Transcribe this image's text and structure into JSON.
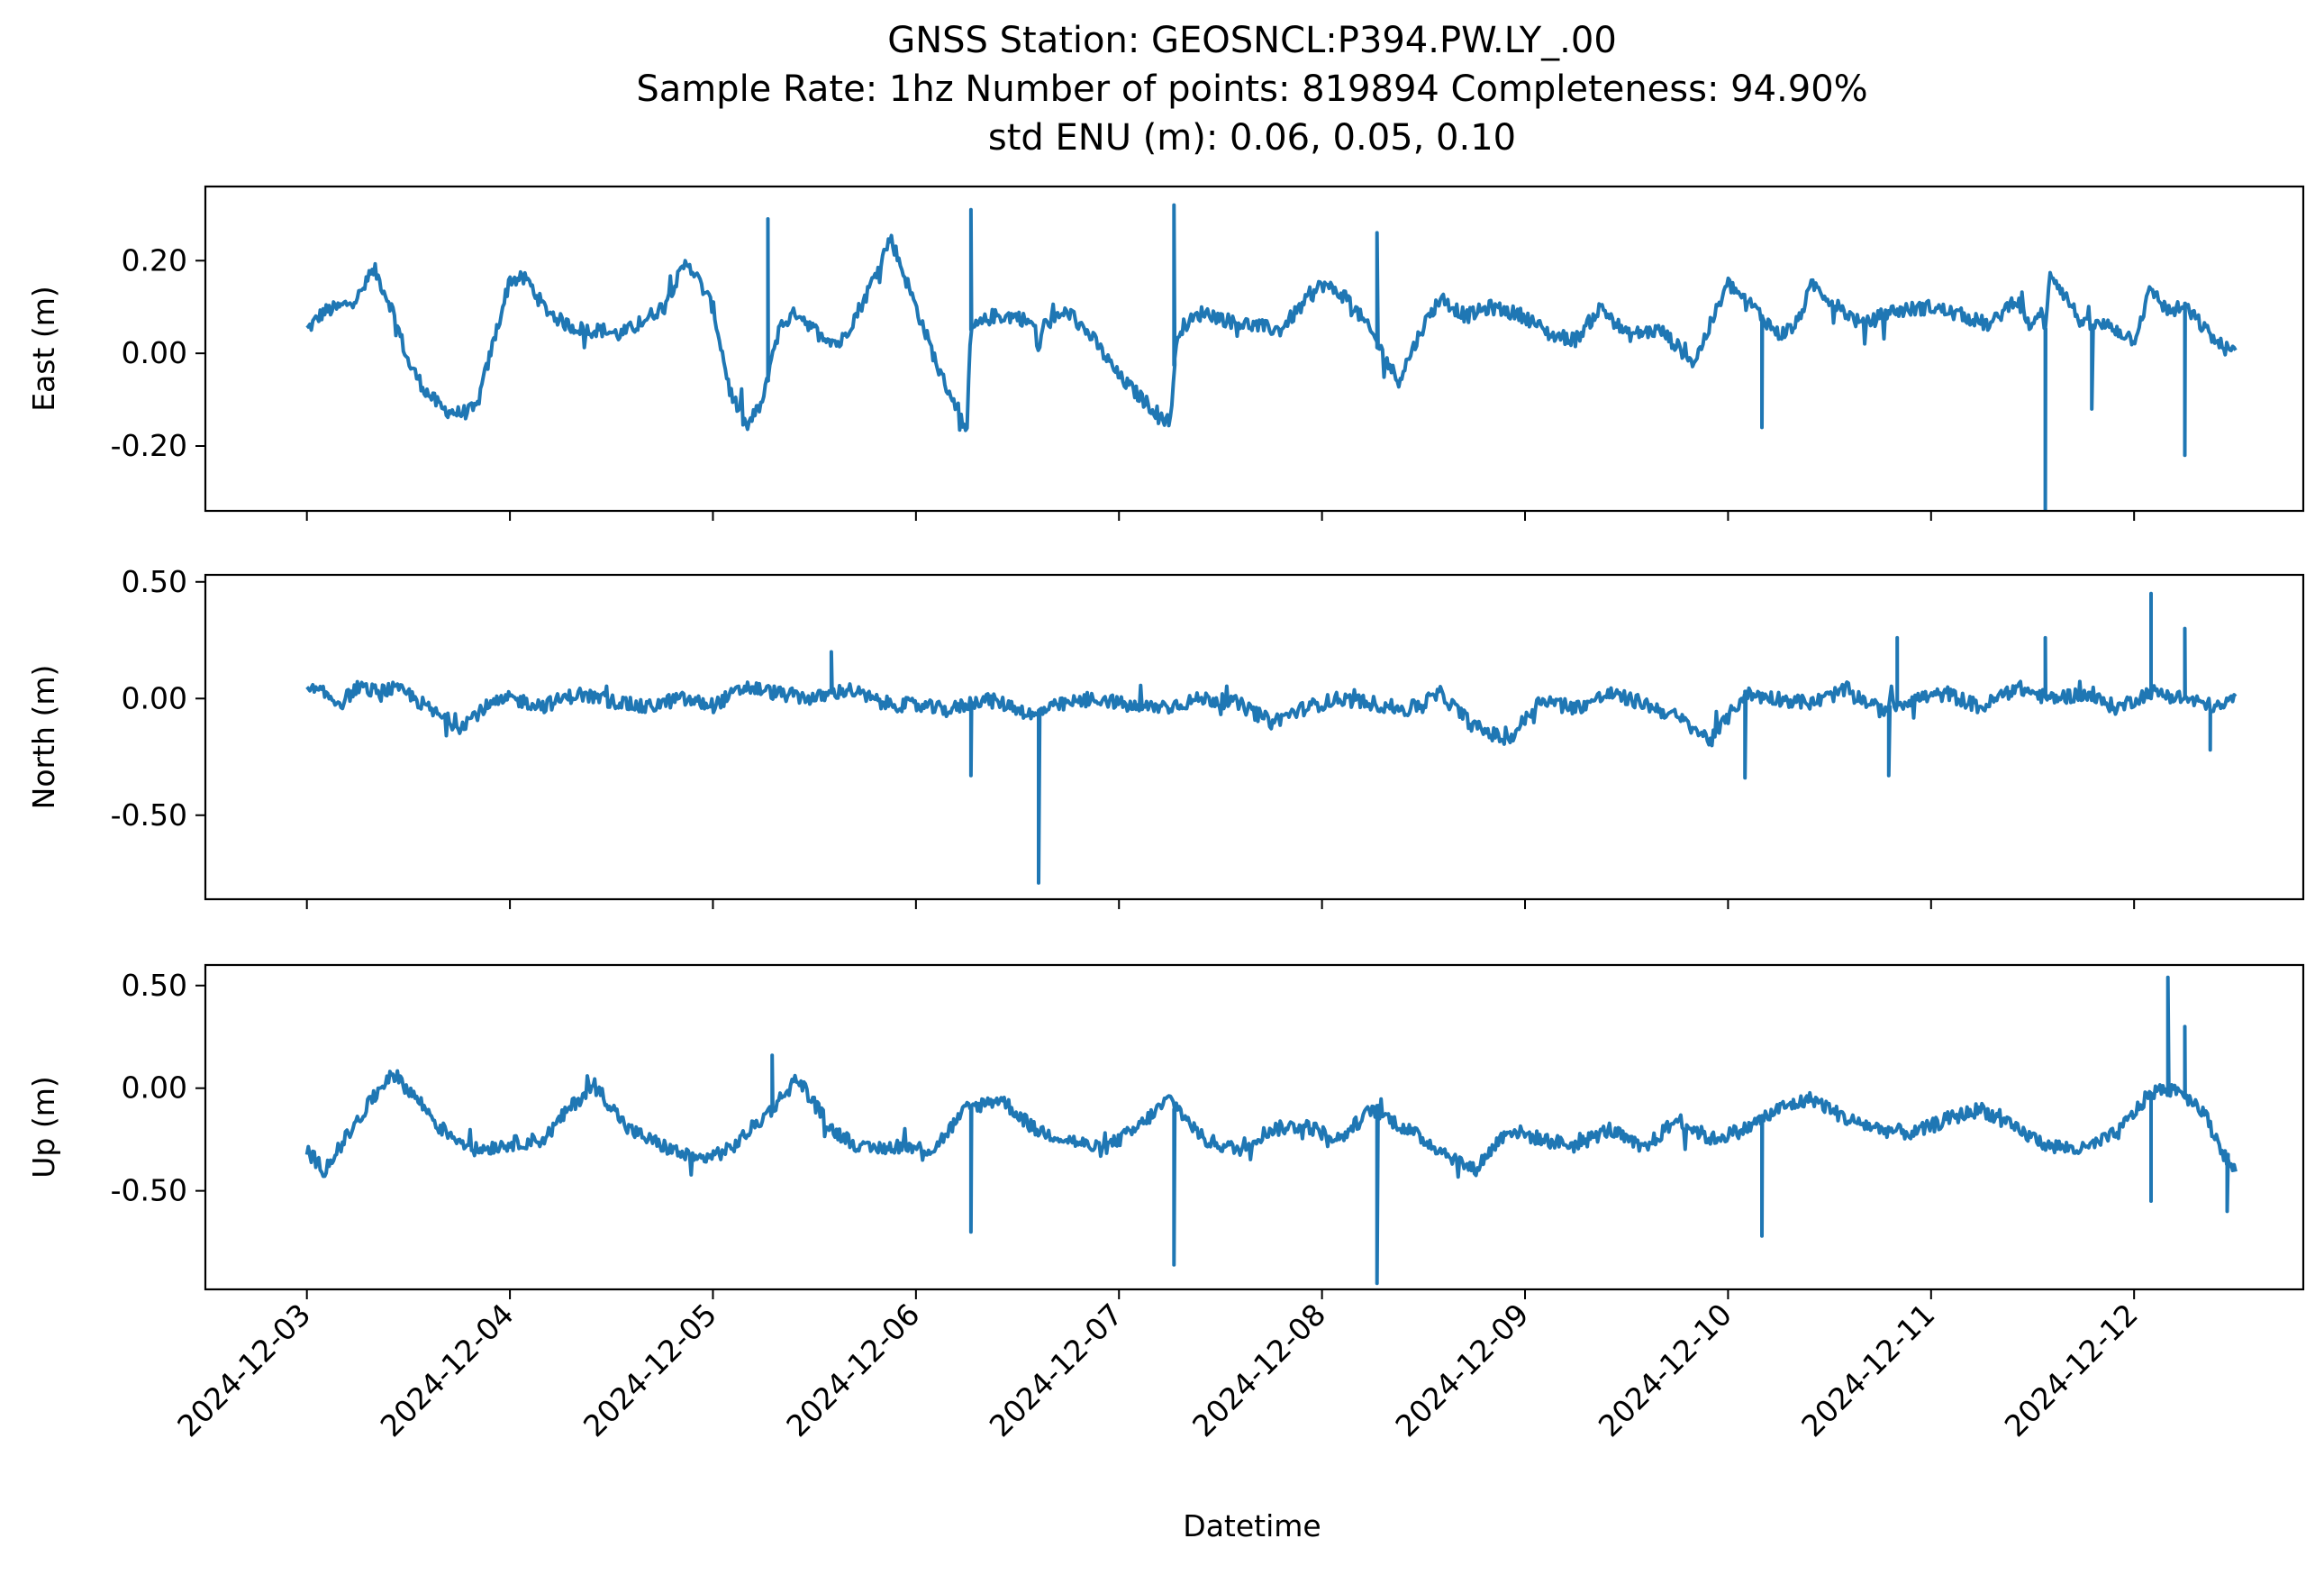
{
  "title": {
    "line1": "GNSS Station: GEOSNCL:P394.PW.LY_.00",
    "line2": "Sample Rate: 1hz   Number of points: 819894    Completeness:  94.90%",
    "line3": "std ENU (m):  0.06, 0.05, 0.10"
  },
  "xlabel": "Datetime",
  "x_tick_labels": [
    "2024-12-03",
    "2024-12-04",
    "2024-12-05",
    "2024-12-06",
    "2024-12-07",
    "2024-12-08",
    "2024-12-09",
    "2024-12-10",
    "2024-12-11",
    "2024-12-12"
  ],
  "colors": {
    "series": "#1f77b4",
    "axes": "#000000",
    "background": "#ffffff"
  },
  "chart_data": [
    {
      "type": "line",
      "name": "east",
      "ylabel": "East (m)",
      "x_range": [
        "2024-12-02T12:00",
        "2024-12-12T20:00"
      ],
      "ylim": [
        -0.34,
        0.36
      ],
      "yticks": [
        0.2,
        0.0,
        -0.2
      ],
      "ytick_labels": [
        "0.20",
        "0.00",
        "-0.20"
      ],
      "grid": false,
      "series": [
        {
          "x": [
            "2024-12-03T00:00",
            "2024-12-03T02:00",
            "2024-12-03T04:00",
            "2024-12-03T06:00",
            "2024-12-03T08:00",
            "2024-12-03T10:00",
            "2024-12-03T12:00",
            "2024-12-03T14:00",
            "2024-12-03T16:00",
            "2024-12-03T18:00",
            "2024-12-03T20:00",
            "2024-12-03T22:00",
            "2024-12-04T00:00",
            "2024-12-04T02:00",
            "2024-12-04T04:00",
            "2024-12-04T06:00",
            "2024-12-04T07:00",
            "2024-12-04T09:00",
            "2024-12-04T11:00",
            "2024-12-04T13:00",
            "2024-12-04T15:00",
            "2024-12-04T18:00",
            "2024-12-04T21:00",
            "2024-12-05T00:00",
            "2024-12-05T02:00",
            "2024-12-05T04:00",
            "2024-12-05T06:00",
            "2024-12-05T07:00",
            "2024-12-05T08:00",
            "2024-12-05T10:00",
            "2024-12-05T12:00",
            "2024-12-05T13:00",
            "2024-12-05T14:00",
            "2024-12-05T15:00",
            "2024-12-05T18:00",
            "2024-12-05T21:00",
            "2024-12-06T00:00",
            "2024-12-06T03:00",
            "2024-12-06T05:00",
            "2024-12-06T06:00",
            "2024-12-06T06:15",
            "2024-12-06T06:30",
            "2024-12-06T09:00",
            "2024-12-06T12:00",
            "2024-12-06T14:00",
            "2024-12-06T14:30",
            "2024-12-06T15:00",
            "2024-12-06T18:00",
            "2024-12-06T21:00",
            "2024-12-07T00:00",
            "2024-12-07T04:00",
            "2024-12-07T06:00",
            "2024-12-07T06:30",
            "2024-12-07T07:00",
            "2024-12-07T10:00",
            "2024-12-07T13:00",
            "2024-12-07T16:00",
            "2024-12-07T19:00",
            "2024-12-08T00:00",
            "2024-12-08T03:00",
            "2024-12-08T06:00",
            "2024-12-08T09:00",
            "2024-12-08T12:00",
            "2024-12-08T14:00",
            "2024-12-08T17:00",
            "2024-12-08T20:00",
            "2024-12-09T00:00",
            "2024-12-09T03:00",
            "2024-12-09T06:00",
            "2024-12-09T09:00",
            "2024-12-09T12:00",
            "2024-12-09T16:00",
            "2024-12-09T20:00",
            "2024-12-10T00:00",
            "2024-12-10T03:00",
            "2024-12-10T06:00",
            "2024-12-10T08:00",
            "2024-12-10T10:00",
            "2024-12-10T13:00",
            "2024-12-10T16:00",
            "2024-12-10T19:00",
            "2024-12-11T00:00",
            "2024-12-11T04:00",
            "2024-12-11T07:00",
            "2024-12-11T10:00",
            "2024-12-11T12:00",
            "2024-12-11T13:00",
            "2024-12-11T13:30",
            "2024-12-11T14:00",
            "2024-12-11T15:00",
            "2024-12-11T18:00",
            "2024-12-11T21:00",
            "2024-12-12T00:00",
            "2024-12-12T02:00",
            "2024-12-12T04:00",
            "2024-12-12T06:00",
            "2024-12-12T08:00",
            "2024-12-12T10:00",
            "2024-12-12T12:00"
          ],
          "y": [
            0.05,
            0.09,
            0.1,
            0.12,
            0.18,
            0.1,
            -0.02,
            -0.08,
            -0.12,
            -0.13,
            -0.12,
            0.02,
            0.16,
            0.16,
            0.1,
            0.07,
            0.06,
            0.05,
            0.05,
            0.04,
            0.06,
            0.1,
            0.2,
            0.1,
            -0.08,
            -0.16,
            -0.1,
            0.0,
            0.06,
            0.09,
            0.05,
            0.04,
            0.03,
            0.02,
            0.12,
            0.25,
            0.1,
            -0.05,
            -0.12,
            -0.19,
            -0.05,
            0.05,
            0.08,
            0.08,
            0.06,
            0.0,
            0.06,
            0.09,
            0.03,
            -0.05,
            -0.12,
            -0.15,
            -0.05,
            0.05,
            0.09,
            0.07,
            0.06,
            0.05,
            0.15,
            0.12,
            0.04,
            -0.06,
            0.06,
            0.12,
            0.08,
            0.1,
            0.08,
            0.04,
            0.03,
            0.1,
            0.04,
            0.05,
            -0.02,
            0.15,
            0.1,
            0.04,
            0.06,
            0.15,
            0.1,
            0.06,
            0.09,
            0.1,
            0.08,
            0.06,
            0.12,
            0.05,
            0.1,
            0.03,
            0.18,
            0.15,
            0.06,
            0.06,
            0.03,
            0.14,
            0.09,
            0.1,
            0.06,
            0.02,
            0.0
          ]
        }
      ],
      "spikes": [
        {
          "x": "2024-12-06T06:30",
          "y": 0.31
        },
        {
          "x": "2024-12-07T06:30",
          "y": 0.32
        },
        {
          "x": "2024-12-05T06:30",
          "y": 0.29
        },
        {
          "x": "2024-12-08T06:30",
          "y": 0.26
        },
        {
          "x": "2024-12-11T13:30",
          "y": -0.34
        },
        {
          "x": "2024-12-12T06:00",
          "y": -0.22
        },
        {
          "x": "2024-12-10T04:00",
          "y": -0.16
        },
        {
          "x": "2024-12-11T19:00",
          "y": -0.12
        }
      ]
    },
    {
      "type": "line",
      "name": "north",
      "ylabel": "North (m)",
      "x_range": [
        "2024-12-02T12:00",
        "2024-12-12T20:00"
      ],
      "ylim": [
        -0.86,
        0.53
      ],
      "yticks": [
        0.5,
        0.0,
        -0.5
      ],
      "ytick_labels": [
        "0.50",
        "0.00",
        "-0.50"
      ],
      "grid": false,
      "series": [
        {
          "x": [
            "2024-12-03T00:00",
            "2024-12-03T02:00",
            "2024-12-03T04:00",
            "2024-12-03T06:00",
            "2024-12-03T08:00",
            "2024-12-03T10:00",
            "2024-12-03T12:00",
            "2024-12-03T15:00",
            "2024-12-03T18:00",
            "2024-12-03T21:00",
            "2024-12-04T00:00",
            "2024-12-04T04:00",
            "2024-12-04T08:00",
            "2024-12-04T12:00",
            "2024-12-04T16:00",
            "2024-12-04T20:00",
            "2024-12-05T00:00",
            "2024-12-05T04:00",
            "2024-12-05T08:00",
            "2024-12-05T12:00",
            "2024-12-05T16:00",
            "2024-12-05T20:00",
            "2024-12-06T00:00",
            "2024-12-06T04:00",
            "2024-12-06T08:00",
            "2024-12-06T12:00",
            "2024-12-06T14:00",
            "2024-12-06T15:00",
            "2024-12-06T18:00",
            "2024-12-06T22:00",
            "2024-12-07T02:00",
            "2024-12-07T06:00",
            "2024-12-07T10:00",
            "2024-12-07T14:00",
            "2024-12-07T18:00",
            "2024-12-07T22:00",
            "2024-12-08T02:00",
            "2024-12-08T06:00",
            "2024-12-08T10:00",
            "2024-12-08T14:00",
            "2024-12-08T18:00",
            "2024-12-08T22:00",
            "2024-12-09T02:00",
            "2024-12-09T06:00",
            "2024-12-09T10:00",
            "2024-12-09T14:00",
            "2024-12-09T18:00",
            "2024-12-09T22:00",
            "2024-12-10T02:00",
            "2024-12-10T06:00",
            "2024-12-10T10:00",
            "2024-12-10T14:00",
            "2024-12-10T18:00",
            "2024-12-10T22:00",
            "2024-12-11T02:00",
            "2024-12-11T06:00",
            "2024-12-11T10:00",
            "2024-12-11T14:00",
            "2024-12-11T18:00",
            "2024-12-11T22:00",
            "2024-12-12T02:00",
            "2024-12-12T06:00",
            "2024-12-12T10:00",
            "2024-12-12T12:00"
          ],
          "y": [
            0.04,
            0.02,
            -0.02,
            0.05,
            0.03,
            0.04,
            0.02,
            -0.06,
            -0.12,
            -0.04,
            0.0,
            -0.03,
            0.02,
            -0.01,
            -0.04,
            0.0,
            -0.03,
            0.05,
            0.02,
            0.0,
            0.04,
            -0.02,
            -0.03,
            -0.05,
            0.0,
            -0.04,
            -0.08,
            -0.05,
            -0.02,
            0.0,
            -0.04,
            -0.03,
            0.0,
            -0.02,
            -0.1,
            -0.04,
            0.0,
            -0.02,
            -0.05,
            0.02,
            -0.12,
            -0.18,
            0.0,
            -0.04,
            0.02,
            -0.02,
            -0.08,
            -0.18,
            0.02,
            0.0,
            -0.02,
            0.04,
            -0.05,
            0.0,
            0.02,
            -0.04,
            0.05,
            0.0,
            0.02,
            -0.04,
            0.03,
            0.0,
            -0.04,
            0.0
          ]
        }
      ],
      "spikes": [
        {
          "x": "2024-12-06T14:30",
          "y": -0.79
        },
        {
          "x": "2024-12-06T06:30",
          "y": -0.33
        },
        {
          "x": "2024-12-05T14:00",
          "y": 0.2
        },
        {
          "x": "2024-12-10T20:00",
          "y": 0.26
        },
        {
          "x": "2024-12-10T02:00",
          "y": -0.34
        },
        {
          "x": "2024-12-10T19:00",
          "y": -0.33
        },
        {
          "x": "2024-12-11T13:30",
          "y": 0.26
        },
        {
          "x": "2024-12-12T02:00",
          "y": 0.45
        },
        {
          "x": "2024-12-12T06:00",
          "y": 0.3
        },
        {
          "x": "2024-12-12T09:00",
          "y": -0.22
        }
      ]
    },
    {
      "type": "line",
      "name": "up",
      "ylabel": "Up (m)",
      "x_range": [
        "2024-12-02T12:00",
        "2024-12-12T20:00"
      ],
      "ylim": [
        -0.98,
        0.6
      ],
      "yticks": [
        0.5,
        0.0,
        -0.5
      ],
      "ytick_labels": [
        "0.50",
        "0.00",
        "-0.50"
      ],
      "grid": false,
      "series": [
        {
          "x": [
            "2024-12-03T00:00",
            "2024-12-03T02:00",
            "2024-12-03T04:00",
            "2024-12-03T07:00",
            "2024-12-03T10:00",
            "2024-12-03T13:00",
            "2024-12-03T16:00",
            "2024-12-03T20:00",
            "2024-12-04T00:00",
            "2024-12-04T04:00",
            "2024-12-04T07:00",
            "2024-12-04T10:00",
            "2024-12-04T14:00",
            "2024-12-04T18:00",
            "2024-12-04T22:00",
            "2024-12-05T02:00",
            "2024-12-05T07:00",
            "2024-12-05T10:00",
            "2024-12-05T14:00",
            "2024-12-05T18:00",
            "2024-12-05T22:00",
            "2024-12-06T02:00",
            "2024-12-06T06:00",
            "2024-12-06T10:00",
            "2024-12-06T14:00",
            "2024-12-06T18:00",
            "2024-12-06T22:00",
            "2024-12-07T02:00",
            "2024-12-07T06:00",
            "2024-12-07T10:00",
            "2024-12-07T14:00",
            "2024-12-07T18:00",
            "2024-12-07T22:00",
            "2024-12-08T02:00",
            "2024-12-08T06:00",
            "2024-12-08T10:00",
            "2024-12-08T14:00",
            "2024-12-08T18:00",
            "2024-12-08T22:00",
            "2024-12-09T02:00",
            "2024-12-09T06:00",
            "2024-12-09T10:00",
            "2024-12-09T14:00",
            "2024-12-09T18:00",
            "2024-12-09T22:00",
            "2024-12-10T02:00",
            "2024-12-10T06:00",
            "2024-12-10T10:00",
            "2024-12-10T14:00",
            "2024-12-10T18:00",
            "2024-12-10T22:00",
            "2024-12-11T02:00",
            "2024-12-11T06:00",
            "2024-12-11T10:00",
            "2024-12-11T14:00",
            "2024-12-11T18:00",
            "2024-12-11T22:00",
            "2024-12-12T02:00",
            "2024-12-12T05:00",
            "2024-12-12T08:00",
            "2024-12-12T11:00",
            "2024-12-12T12:00"
          ],
          "y": [
            -0.3,
            -0.4,
            -0.28,
            -0.1,
            0.08,
            -0.05,
            -0.2,
            -0.3,
            -0.27,
            -0.25,
            -0.1,
            0.02,
            -0.2,
            -0.28,
            -0.35,
            -0.3,
            -0.1,
            0.05,
            -0.2,
            -0.3,
            -0.28,
            -0.3,
            -0.1,
            -0.05,
            -0.2,
            -0.25,
            -0.3,
            -0.2,
            -0.05,
            -0.25,
            -0.3,
            -0.2,
            -0.18,
            -0.25,
            -0.1,
            -0.2,
            -0.3,
            -0.4,
            -0.2,
            -0.25,
            -0.28,
            -0.2,
            -0.3,
            -0.15,
            -0.25,
            -0.2,
            -0.1,
            -0.05,
            -0.15,
            -0.2,
            -0.22,
            -0.15,
            -0.1,
            -0.2,
            -0.28,
            -0.3,
            -0.22,
            -0.02,
            0.0,
            -0.1,
            -0.35,
            -0.4
          ]
        }
      ],
      "spikes": [
        {
          "x": "2024-12-07T06:30",
          "y": -0.86
        },
        {
          "x": "2024-12-08T06:30",
          "y": -0.95
        },
        {
          "x": "2024-12-06T06:30",
          "y": -0.7
        },
        {
          "x": "2024-12-10T04:00",
          "y": -0.72
        },
        {
          "x": "2024-12-12T04:00",
          "y": 0.54
        },
        {
          "x": "2024-12-12T06:00",
          "y": 0.3
        },
        {
          "x": "2024-12-12T02:00",
          "y": -0.55
        },
        {
          "x": "2024-12-12T11:00",
          "y": -0.6
        },
        {
          "x": "2024-12-05T07:00",
          "y": 0.16
        }
      ]
    }
  ]
}
